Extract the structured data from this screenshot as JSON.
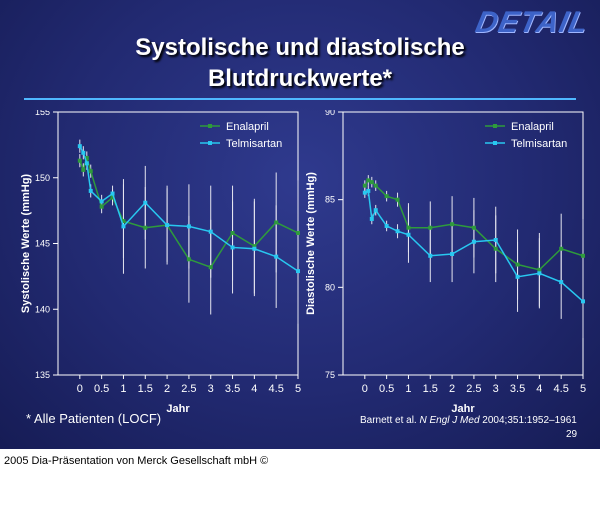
{
  "logo": "DETAIL",
  "title_lines": [
    "Systolische und diastolische",
    "Blutdruckwerte*"
  ],
  "footnote": "* Alle Patienten (LOCF)",
  "citation": {
    "prefix": "Barnett et al. ",
    "journal": "N Engl J Med",
    "suffix": " 2004;351:1952–1961"
  },
  "page_number": "29",
  "copyright": "2005 Dia-Präsentation von Merck Gesellschaft mbH ©",
  "colors": {
    "enalapril": "#2e9b3c",
    "telmisartan": "#28c8f0",
    "rule": "#4fb8ff"
  },
  "chart_data": [
    {
      "type": "line",
      "xlabel": "Jahr",
      "ylabel": "Systolische Werte (mmHg)",
      "xlim": [
        -0.5,
        5
      ],
      "ylim": [
        135,
        155
      ],
      "xticks": [
        0,
        0.5,
        1,
        1.5,
        2,
        2.5,
        3,
        3.5,
        4,
        4.5,
        5
      ],
      "xtick_labels": [
        "0",
        "0.5",
        "1",
        "1.5",
        "2",
        "2.5",
        "3",
        "3.5",
        "4",
        "4.5",
        "5"
      ],
      "yticks": [
        135,
        140,
        145,
        150,
        155
      ],
      "legend": "top-right",
      "series": [
        {
          "name": "Enalapril",
          "x": [
            0,
            0.08,
            0.16,
            0.25,
            0.5,
            0.75,
            1,
            1.5,
            2,
            2.5,
            3,
            3.5,
            4,
            4.5,
            5
          ],
          "y": [
            151.3,
            150.6,
            151.5,
            150.5,
            147.8,
            148.5,
            146.7,
            146.2,
            146.4,
            143.8,
            143.2,
            145.8,
            144.8,
            146.6,
            145.8
          ],
          "err": [
            0.5,
            0.5,
            0.5,
            0.5,
            0.5,
            0.6,
            2.8,
            3.1,
            2.8,
            3.3,
            3.6,
            3.6,
            3.6,
            3.8,
            4.0
          ]
        },
        {
          "name": "Telmisartan",
          "x": [
            0,
            0.08,
            0.16,
            0.25,
            0.5,
            0.75,
            1,
            1.5,
            2,
            2.5,
            3,
            3.5,
            4,
            4.5,
            5
          ],
          "y": [
            152.4,
            151.9,
            151.1,
            149.0,
            148.2,
            148.8,
            146.3,
            148.1,
            146.4,
            146.3,
            145.9,
            144.7,
            144.6,
            144.0,
            142.9
          ],
          "err": [
            0.5,
            0.5,
            0.5,
            0.5,
            0.5,
            0.6,
            3.6,
            2.8,
            3.0,
            3.2,
            3.5,
            3.5,
            3.6,
            3.9,
            4.0
          ]
        }
      ]
    },
    {
      "type": "line",
      "xlabel": "Jahr",
      "ylabel": "Diastolische Werte (mmHg)",
      "xlim": [
        -0.5,
        5
      ],
      "ylim": [
        75,
        90
      ],
      "xticks": [
        0,
        0.5,
        1,
        1.5,
        2,
        2.5,
        3,
        3.5,
        4,
        4.5,
        5
      ],
      "xtick_labels": [
        "0",
        "0.5",
        "1",
        "1.5",
        "2",
        "2.5",
        "3",
        "3.5",
        "4",
        "4.5",
        "5"
      ],
      "yticks": [
        75,
        80,
        85,
        90
      ],
      "legend": "top-right",
      "series": [
        {
          "name": "Enalapril",
          "x": [
            0,
            0.08,
            0.16,
            0.25,
            0.5,
            0.75,
            1,
            1.5,
            2,
            2.5,
            3,
            3.5,
            4,
            4.5,
            5
          ],
          "y": [
            85.8,
            86.1,
            86.0,
            85.8,
            85.2,
            85.0,
            83.4,
            83.4,
            83.6,
            83.4,
            82.2,
            81.3,
            81.0,
            82.2,
            81.8
          ],
          "err": [
            0.3,
            0.3,
            0.3,
            0.3,
            0.3,
            0.4,
            1.4,
            1.5,
            1.6,
            1.7,
            1.9,
            2.0,
            2.1,
            2.0,
            2.1
          ]
        },
        {
          "name": "Telmisartan",
          "x": [
            0,
            0.08,
            0.16,
            0.25,
            0.5,
            0.75,
            1,
            1.5,
            2,
            2.5,
            3,
            3.5,
            4,
            4.5,
            5
          ],
          "y": [
            85.4,
            85.5,
            83.9,
            84.4,
            83.5,
            83.2,
            83.0,
            81.8,
            81.9,
            82.6,
            82.7,
            80.6,
            80.8,
            80.3,
            79.2
          ],
          "err": [
            0.3,
            0.3,
            0.3,
            0.3,
            0.3,
            0.4,
            1.6,
            1.5,
            1.6,
            1.8,
            1.9,
            2.0,
            2.0,
            2.1,
            2.1
          ]
        }
      ]
    }
  ]
}
